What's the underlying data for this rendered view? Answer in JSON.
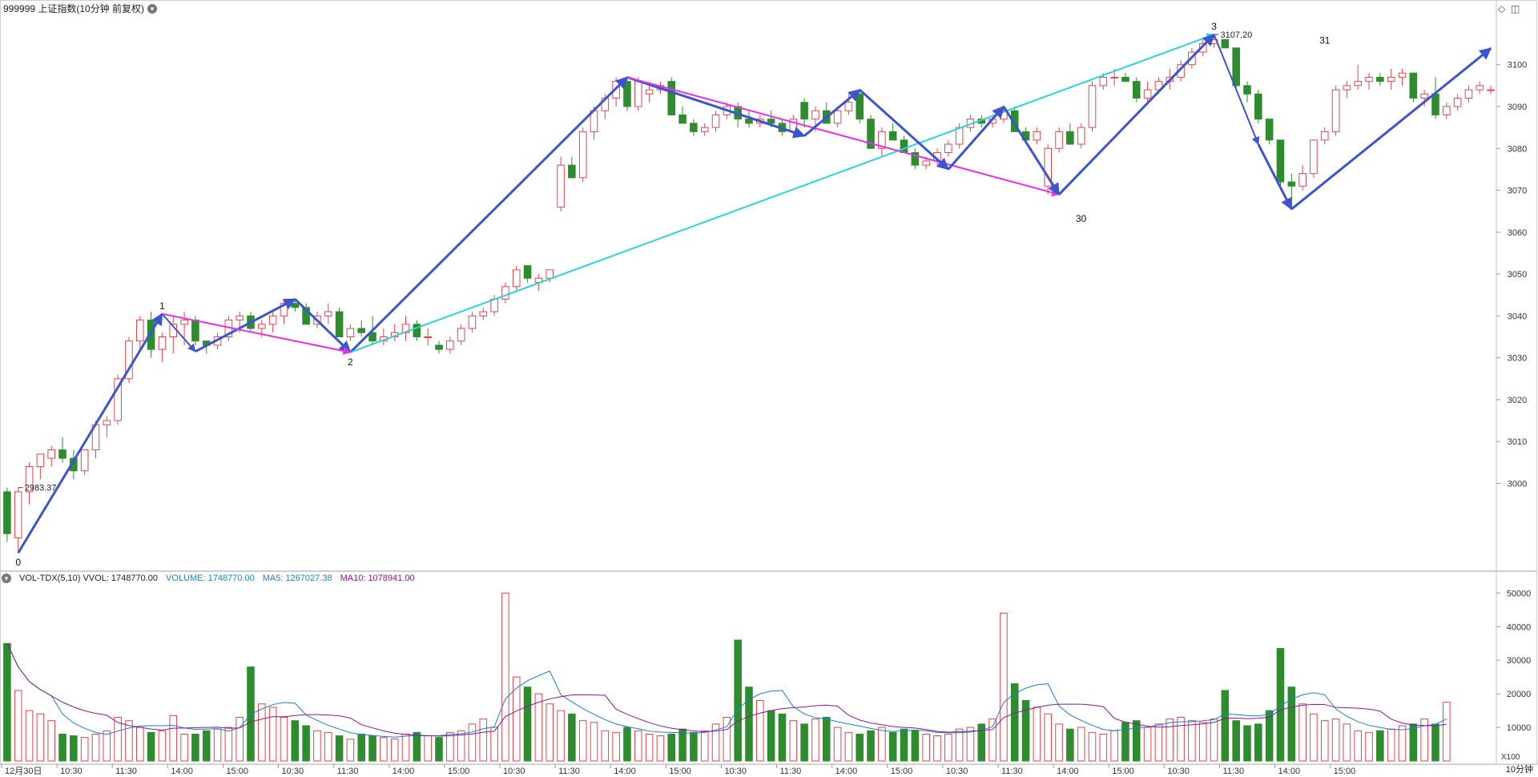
{
  "header": {
    "title": "999999 上证指数(10分钟 前复权)",
    "dropdown_icon": "chevron-down-icon"
  },
  "controls": {
    "diamond_icon": "diamond-icon",
    "panel_icon": "panel-toggle-icon"
  },
  "volume_header": {
    "name": "VOL-TDX(5,10) VVOL: 1748770.00",
    "volume": "VOLUME: 1748770.00",
    "ma5": "MA5: 1267027.38",
    "ma10": "MA10: 1078941.00"
  },
  "period_label": "10分钟",
  "colors": {
    "up": "#e8434b",
    "down": "#2e8b2e",
    "wave_blue": "#3c55cc",
    "wave_magenta": "#e632e6",
    "wave_cyan": "#2bd4d4",
    "ma5": "#1a7fd1",
    "ma10": "#8a1a8a",
    "grid": "#e8e8e8",
    "axis": "#999999"
  },
  "chart_data": [
    {
      "type": "candlestick",
      "title": "999999 上证指数(10分钟 前复权)",
      "y_ticks": [
        3000,
        3010,
        3020,
        3030,
        3040,
        3050,
        3060,
        3070,
        3080,
        3090,
        3100
      ],
      "ylim": [
        2980,
        3112
      ],
      "x_tick_labels": [
        {
          "i": 0,
          "label": "12月30日"
        },
        {
          "i": 5,
          "label": "10:30"
        },
        {
          "i": 10,
          "label": "11:30"
        },
        {
          "i": 15,
          "label": "14:00"
        },
        {
          "i": 20,
          "label": "15:00"
        },
        {
          "i": 25,
          "label": "10:30"
        },
        {
          "i": 30,
          "label": "11:30"
        },
        {
          "i": 35,
          "label": "14:00"
        },
        {
          "i": 40,
          "label": "15:00"
        },
        {
          "i": 45,
          "label": "10:30"
        },
        {
          "i": 50,
          "label": "11:30"
        },
        {
          "i": 55,
          "label": "14:00"
        },
        {
          "i": 60,
          "label": "15:00"
        },
        {
          "i": 65,
          "label": "10:30"
        },
        {
          "i": 70,
          "label": "11:30"
        },
        {
          "i": 75,
          "label": "14:00"
        },
        {
          "i": 80,
          "label": "15:00"
        },
        {
          "i": 85,
          "label": "10:30"
        },
        {
          "i": 90,
          "label": "11:30"
        },
        {
          "i": 95,
          "label": "14:00"
        },
        {
          "i": 100,
          "label": "15:00"
        },
        {
          "i": 105,
          "label": "10:30"
        },
        {
          "i": 110,
          "label": "11:30"
        },
        {
          "i": 115,
          "label": "14:00"
        },
        {
          "i": 120,
          "label": "15:00"
        }
      ],
      "ohlc": [
        [
          2998,
          2999,
          2986,
          2988
        ],
        [
          2987,
          2999,
          2983.4,
          2998
        ],
        [
          2998,
          3005,
          2995,
          3004
        ],
        [
          3004,
          3007,
          3001,
          3007
        ],
        [
          3006,
          3009,
          3004,
          3008
        ],
        [
          3008,
          3011,
          3005,
          3006
        ],
        [
          3006,
          3008,
          3001,
          3003
        ],
        [
          3003,
          3008,
          3002,
          3008
        ],
        [
          3008,
          3015,
          3006,
          3014
        ],
        [
          3014,
          3016,
          3011,
          3015
        ],
        [
          3015,
          3026,
          3014,
          3025
        ],
        [
          3025,
          3035,
          3024,
          3034
        ],
        [
          3034,
          3040,
          3032,
          3039
        ],
        [
          3039,
          3041,
          3030,
          3032
        ],
        [
          3032,
          3036,
          3029,
          3035
        ],
        [
          3035,
          3040,
          3031,
          3038
        ],
        [
          3038,
          3041,
          3033,
          3039
        ],
        [
          3039,
          3040,
          3033,
          3034
        ],
        [
          3034,
          3034,
          3031,
          3033
        ],
        [
          3033,
          3036,
          3032,
          3035
        ],
        [
          3035,
          3040,
          3034,
          3039
        ],
        [
          3039,
          3041,
          3036,
          3040
        ],
        [
          3040,
          3041,
          3036,
          3037
        ],
        [
          3037,
          3039,
          3035,
          3038
        ],
        [
          3038,
          3041,
          3036,
          3040
        ],
        [
          3040,
          3044,
          3038,
          3043
        ],
        [
          3043,
          3044,
          3041,
          3042
        ],
        [
          3042,
          3043,
          3038,
          3038
        ],
        [
          3038,
          3041,
          3037,
          3040
        ],
        [
          3040,
          3043,
          3038,
          3041
        ],
        [
          3041,
          3042,
          3035,
          3035
        ],
        [
          3035,
          3038,
          3034,
          3037
        ],
        [
          3037,
          3039,
          3035,
          3036
        ],
        [
          3036,
          3040,
          3033,
          3034
        ],
        [
          3034,
          3037,
          3033,
          3035
        ],
        [
          3035,
          3038,
          3034,
          3036
        ],
        [
          3036,
          3040,
          3034,
          3038
        ],
        [
          3038,
          3039,
          3034,
          3035
        ],
        [
          3035,
          3037,
          3033,
          3035
        ],
        [
          3033,
          3034,
          3031,
          3032
        ],
        [
          3032,
          3035,
          3031,
          3034
        ],
        [
          3034,
          3038,
          3033,
          3037
        ],
        [
          3037,
          3041,
          3036,
          3040
        ],
        [
          3040,
          3042,
          3039,
          3041
        ],
        [
          3041,
          3045,
          3040,
          3044
        ],
        [
          3044,
          3048,
          3043,
          3047
        ],
        [
          3047,
          3052,
          3046,
          3051
        ],
        [
          3052,
          3052,
          3048,
          3049
        ],
        [
          3048,
          3050,
          3046,
          3049
        ],
        [
          3049,
          3051,
          3048,
          3051
        ],
        [
          3066,
          3078,
          3065,
          3076
        ],
        [
          3076,
          3078,
          3073,
          3073
        ],
        [
          3073,
          3085,
          3072,
          3084
        ],
        [
          3084,
          3090,
          3082,
          3089
        ],
        [
          3089,
          3093,
          3087,
          3092
        ],
        [
          3092,
          3097,
          3090,
          3096
        ],
        [
          3096,
          3097,
          3089,
          3090
        ],
        [
          3090,
          3097,
          3089,
          3096
        ],
        [
          3093,
          3095,
          3091,
          3094
        ],
        [
          3094,
          3096,
          3093,
          3095
        ],
        [
          3096,
          3097,
          3088,
          3088
        ],
        [
          3088,
          3090,
          3086,
          3086
        ],
        [
          3086,
          3087,
          3083,
          3084
        ],
        [
          3084,
          3086,
          3083,
          3085
        ],
        [
          3085,
          3089,
          3084,
          3088
        ],
        [
          3088,
          3091,
          3087,
          3090
        ],
        [
          3090,
          3091,
          3085,
          3087
        ],
        [
          3087,
          3089,
          3085,
          3086
        ],
        [
          3086,
          3088,
          3085,
          3087
        ],
        [
          3087,
          3089,
          3085,
          3086
        ],
        [
          3086,
          3087,
          3083,
          3084
        ],
        [
          3084,
          3088,
          3083,
          3087
        ],
        [
          3091,
          3092,
          3085,
          3087
        ],
        [
          3087,
          3090,
          3084,
          3089
        ],
        [
          3089,
          3091,
          3086,
          3086
        ],
        [
          3086,
          3090,
          3085,
          3089
        ],
        [
          3089,
          3093,
          3088,
          3091
        ],
        [
          3093,
          3094,
          3086,
          3087
        ],
        [
          3087,
          3088,
          3080,
          3080
        ],
        [
          3080,
          3085,
          3078,
          3084
        ],
        [
          3084,
          3086,
          3082,
          3082
        ],
        [
          3082,
          3083,
          3079,
          3079
        ],
        [
          3079,
          3080,
          3075,
          3076
        ],
        [
          3076,
          3078,
          3075,
          3077
        ],
        [
          3077,
          3080,
          3076,
          3079
        ],
        [
          3079,
          3082,
          3078,
          3081
        ],
        [
          3081,
          3086,
          3080,
          3085
        ],
        [
          3085,
          3088,
          3084,
          3087
        ],
        [
          3087,
          3088,
          3085,
          3086
        ],
        [
          3086,
          3088,
          3085,
          3087
        ],
        [
          3087,
          3090,
          3086,
          3089
        ],
        [
          3089,
          3090,
          3084,
          3084
        ],
        [
          3084,
          3085,
          3082,
          3082
        ],
        [
          3082,
          3085,
          3081,
          3084
        ],
        [
          3071,
          3081,
          3069,
          3080
        ],
        [
          3080,
          3085,
          3079,
          3084
        ],
        [
          3084,
          3086,
          3081,
          3081
        ],
        [
          3081,
          3086,
          3080,
          3085
        ],
        [
          3085,
          3096,
          3084,
          3095
        ],
        [
          3095,
          3098,
          3094,
          3097
        ],
        [
          3097,
          3099,
          3095,
          3097
        ],
        [
          3097,
          3098,
          3096,
          3096
        ],
        [
          3096,
          3097,
          3091,
          3092
        ],
        [
          3092,
          3096,
          3091,
          3094
        ],
        [
          3094,
          3097,
          3093,
          3096
        ],
        [
          3096,
          3099,
          3094,
          3097
        ],
        [
          3097,
          3101,
          3096,
          3100
        ],
        [
          3100,
          3104,
          3099,
          3103
        ],
        [
          3103,
          3106,
          3102,
          3105
        ],
        [
          3105,
          3107.2,
          3104,
          3106
        ],
        [
          3106,
          3106,
          3104,
          3104
        ],
        [
          3104,
          3104,
          3094,
          3095
        ],
        [
          3095,
          3096,
          3091,
          3093
        ],
        [
          3093,
          3094,
          3086,
          3087
        ],
        [
          3087,
          3087,
          3081,
          3082
        ],
        [
          3082,
          3082,
          3071,
          3072
        ],
        [
          3072,
          3074,
          3066,
          3071
        ],
        [
          3071,
          3076,
          3070,
          3074
        ],
        [
          3074,
          3082,
          3073,
          3082
        ],
        [
          3082,
          3085,
          3081,
          3084
        ],
        [
          3084,
          3095,
          3083,
          3094
        ],
        [
          3094,
          3096,
          3092,
          3095
        ],
        [
          3095,
          3100,
          3094,
          3096
        ],
        [
          3096,
          3098,
          3094,
          3097
        ],
        [
          3097,
          3098,
          3095,
          3096
        ],
        [
          3096,
          3099,
          3094,
          3097
        ],
        [
          3097,
          3099,
          3095,
          3098
        ],
        [
          3098,
          3098,
          3091,
          3092
        ],
        [
          3092,
          3094,
          3090,
          3093
        ],
        [
          3093,
          3097,
          3087,
          3088
        ],
        [
          3088,
          3091,
          3087,
          3090
        ],
        [
          3090,
          3093,
          3089,
          3092
        ],
        [
          3092,
          3095,
          3091,
          3094
        ],
        [
          3094,
          3096,
          3093,
          3095
        ],
        [
          3094,
          3095,
          3093,
          3094
        ]
      ],
      "extrema_labels": [
        {
          "i": 1,
          "text": "2983.37"
        },
        {
          "i": 109,
          "text": "3107.20"
        }
      ],
      "wave_points": [
        {
          "i": 1,
          "price": 2983.4,
          "label": "0"
        },
        {
          "i": 14,
          "price": 3040.5,
          "label": "1"
        },
        {
          "i": 31,
          "price": 3031.3,
          "label": "2"
        },
        {
          "i": 109,
          "price": 3107.2,
          "label": "3"
        },
        {
          "i": 97,
          "price": 3065.5,
          "label": "30"
        },
        {
          "i": 119,
          "price": 3103.9,
          "label": "31"
        }
      ]
    },
    {
      "type": "bar",
      "title": "VOL-TDX(5,10)",
      "y_ticks": [
        10000,
        20000,
        30000,
        40000,
        50000
      ],
      "ylim": [
        0,
        52000
      ],
      "unit_label": "X100",
      "volume": [
        35000,
        21000,
        15000,
        14000,
        12000,
        8000,
        7500,
        7000,
        8000,
        9000,
        13000,
        12000,
        10000,
        8500,
        9000,
        13500,
        8000,
        8000,
        9000,
        9500,
        10000,
        13000,
        28000,
        17000,
        16000,
        13000,
        12000,
        10500,
        9000,
        8500,
        7500,
        6500,
        8000,
        7500,
        7000,
        6500,
        8000,
        8500,
        7500,
        7000,
        8500,
        9000,
        11000,
        12500,
        10000,
        50000,
        25000,
        22000,
        20000,
        17000,
        15000,
        14000,
        12000,
        11500,
        9000,
        8500,
        10000,
        9000,
        8000,
        7500,
        8000,
        9500,
        8500,
        9000,
        11000,
        13000,
        36000,
        22000,
        18000,
        15000,
        14000,
        12000,
        11000,
        12500,
        13000,
        10000,
        8500,
        8000,
        9000,
        10000,
        8500,
        9500,
        9000,
        8000,
        7500,
        8000,
        9500,
        10000,
        11000,
        12500,
        44000,
        23000,
        18000,
        16000,
        14000,
        11000,
        9500,
        10000,
        8500,
        8000,
        9000,
        11500,
        12000,
        10000,
        11000,
        12500,
        13000,
        12000,
        11500,
        12500,
        21000,
        12000,
        10500,
        11000,
        15000,
        33500,
        22000,
        17000,
        14000,
        12000,
        12500,
        11000,
        9000,
        8500,
        9000,
        9500,
        10500,
        11000,
        12500,
        11000,
        17500
      ]
    }
  ]
}
